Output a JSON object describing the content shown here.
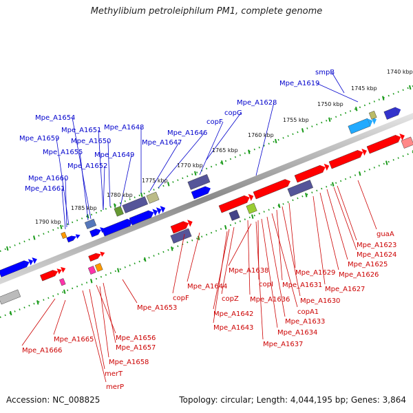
{
  "title": "Methylibium petroleiphilum PM1, complete genome",
  "footer": {
    "accession": "Accession: NC_008825",
    "summary": "Topology: circular; Length: 4,044,195 bp; Genes: 3,864"
  },
  "colors": {
    "forward_label": "#0000cc",
    "reverse_label": "#cc0000",
    "forward_gene": "#0000ff",
    "reverse_gene": "#ff0000",
    "backbone": "#888888",
    "tick": "#1a9a1a"
  },
  "kbp_ticks": [
    "1740 kbp",
    "1745 kbp",
    "1750 kbp",
    "1755 kbp",
    "1760 kbp",
    "1765 kbp",
    "1770 kbp",
    "1775 kbp",
    "1780 kbp",
    "1785 kbp",
    "1790 kbp"
  ],
  "forward_labels": [
    "smpB",
    "Mpe_A1619",
    "Mpe_A1628",
    "copG",
    "copF",
    "Mpe_A1646",
    "Mpe_A1647",
    "Mpe_A1648",
    "Mpe_A1649",
    "Mpe_A1650",
    "Mpe_A1651",
    "Mpe_A1652",
    "Mpe_A1654",
    "Mpe_A1655",
    "Mpe_A1659",
    "Mpe_A1660",
    "Mpe_A1661"
  ],
  "reverse_labels": [
    "guaA",
    "Mpe_A1623",
    "Mpe_A1624",
    "Mpe_A1625",
    "Mpe_A1626",
    "Mpe_A1627",
    "Mpe_A1629",
    "Mpe_A1630",
    "Mpe_A1631",
    "copA1",
    "Mpe_A1633",
    "Mpe_A1634",
    "Mpe_A1636",
    "copI",
    "Mpe_A1637",
    "Mpe_A1638",
    "copZ",
    "Mpe_A1642",
    "Mpe_A1643",
    "Mpe_A1644",
    "copF",
    "Mpe_A1653",
    "Mpe_A1656",
    "Mpe_A1657",
    "Mpe_A1658",
    "merT",
    "merP",
    "Mpe_A1665",
    "Mpe_A1666"
  ]
}
